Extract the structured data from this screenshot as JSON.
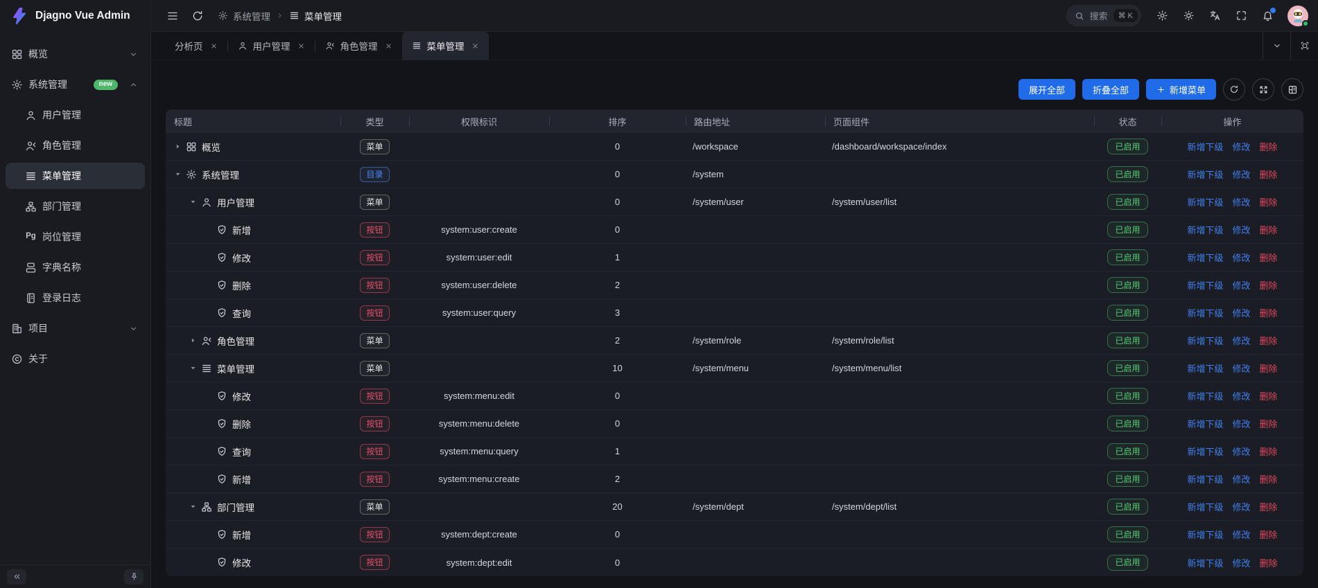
{
  "app": {
    "title": "Djagno Vue Admin"
  },
  "header": {
    "breadcrumb": [
      {
        "icon": "gear-icon",
        "label": "系统管理"
      },
      {
        "icon": "menu-list-icon",
        "label": "菜单管理"
      }
    ],
    "search": {
      "placeholder": "搜索",
      "shortcut": "⌘ K"
    }
  },
  "sidebar": {
    "items": [
      {
        "name": "overview",
        "icon": "dashboard-icon",
        "label": "概览",
        "level": 0,
        "chevron": "down"
      },
      {
        "name": "system",
        "icon": "gear-icon",
        "label": "系统管理",
        "level": 0,
        "badge": "new",
        "chevron": "up"
      },
      {
        "name": "user",
        "icon": "user-icon",
        "label": "用户管理",
        "level": 1
      },
      {
        "name": "role",
        "icon": "role-icon",
        "label": "角色管理",
        "level": 1
      },
      {
        "name": "menu",
        "icon": "menu-list-icon",
        "label": "菜单管理",
        "level": 1,
        "active": true
      },
      {
        "name": "dept",
        "icon": "dept-icon",
        "label": "部门管理",
        "level": 1
      },
      {
        "name": "post",
        "icon": "post-icon",
        "label": "岗位管理",
        "level": 1
      },
      {
        "name": "dict",
        "icon": "dict-icon",
        "label": "字典名称",
        "level": 1
      },
      {
        "name": "login-log",
        "icon": "log-icon",
        "label": "登录日志",
        "level": 1
      },
      {
        "name": "project",
        "icon": "project-icon",
        "label": "项目",
        "level": 0,
        "chevron": "down"
      },
      {
        "name": "about",
        "icon": "about-icon",
        "label": "关于",
        "level": 0
      }
    ]
  },
  "tabs": [
    {
      "name": "analysis",
      "label": "分析页"
    },
    {
      "name": "user",
      "icon": "user-icon",
      "label": "用户管理"
    },
    {
      "name": "role",
      "icon": "role-icon",
      "label": "角色管理"
    },
    {
      "name": "menu",
      "icon": "menu-list-icon",
      "label": "菜单管理",
      "active": true
    }
  ],
  "toolbar": {
    "expand_all": "展开全部",
    "collapse_all": "折叠全部",
    "add_menu": "新增菜单"
  },
  "table": {
    "columns": [
      "标题",
      "类型",
      "权限标识",
      "排序",
      "路由地址",
      "页面组件",
      "状态",
      "操作"
    ],
    "actions": [
      {
        "name": "add-child",
        "label": "新增下级",
        "variant": "blue"
      },
      {
        "name": "edit",
        "label": "修改",
        "variant": "blue"
      },
      {
        "name": "delete",
        "label": "删除",
        "variant": "red"
      }
    ],
    "rows": [
      {
        "level": 0,
        "arrow": "collapsed",
        "icon": "dashboard-icon",
        "title": "概览",
        "type": "菜单",
        "variant": "menu",
        "perm": "",
        "sort": "0",
        "route": "/workspace",
        "component": "/dashboard/workspace/index",
        "status": "已启用"
      },
      {
        "level": 0,
        "arrow": "expanded",
        "icon": "gear-icon",
        "title": "系统管理",
        "type": "目录",
        "variant": "dir",
        "perm": "",
        "sort": "0",
        "route": "/system",
        "component": "",
        "status": "已启用"
      },
      {
        "level": 1,
        "arrow": "expanded",
        "icon": "user-icon",
        "title": "用户管理",
        "type": "菜单",
        "variant": "menu",
        "perm": "",
        "sort": "0",
        "route": "/system/user",
        "component": "/system/user/list",
        "status": "已启用"
      },
      {
        "level": 2,
        "arrow": "none",
        "icon": "shield-icon",
        "title": "新增",
        "type": "按钮",
        "variant": "button",
        "perm": "system:user:create",
        "sort": "0",
        "route": "",
        "component": "",
        "status": "已启用"
      },
      {
        "level": 2,
        "arrow": "none",
        "icon": "shield-icon",
        "title": "修改",
        "type": "按钮",
        "variant": "button",
        "perm": "system:user:edit",
        "sort": "1",
        "route": "",
        "component": "",
        "status": "已启用"
      },
      {
        "level": 2,
        "arrow": "none",
        "icon": "shield-icon",
        "title": "删除",
        "type": "按钮",
        "variant": "button",
        "perm": "system:user:delete",
        "sort": "2",
        "route": "",
        "component": "",
        "status": "已启用"
      },
      {
        "level": 2,
        "arrow": "none",
        "icon": "shield-icon",
        "title": "查询",
        "type": "按钮",
        "variant": "button",
        "perm": "system:user:query",
        "sort": "3",
        "route": "",
        "component": "",
        "status": "已启用"
      },
      {
        "level": 1,
        "arrow": "collapsed",
        "icon": "role-icon",
        "title": "角色管理",
        "type": "菜单",
        "variant": "menu",
        "perm": "",
        "sort": "2",
        "route": "/system/role",
        "component": "/system/role/list",
        "status": "已启用"
      },
      {
        "level": 1,
        "arrow": "expanded",
        "icon": "menu-list-icon",
        "title": "菜单管理",
        "type": "菜单",
        "variant": "menu",
        "perm": "",
        "sort": "10",
        "route": "/system/menu",
        "component": "/system/menu/list",
        "status": "已启用"
      },
      {
        "level": 2,
        "arrow": "none",
        "icon": "shield-icon",
        "title": "修改",
        "type": "按钮",
        "variant": "button",
        "perm": "system:menu:edit",
        "sort": "0",
        "route": "",
        "component": "",
        "status": "已启用"
      },
      {
        "level": 2,
        "arrow": "none",
        "icon": "shield-icon",
        "title": "删除",
        "type": "按钮",
        "variant": "button",
        "perm": "system:menu:delete",
        "sort": "0",
        "route": "",
        "component": "",
        "status": "已启用"
      },
      {
        "level": 2,
        "arrow": "none",
        "icon": "shield-icon",
        "title": "查询",
        "type": "按钮",
        "variant": "button",
        "perm": "system:menu:query",
        "sort": "1",
        "route": "",
        "component": "",
        "status": "已启用"
      },
      {
        "level": 2,
        "arrow": "none",
        "icon": "shield-icon",
        "title": "新增",
        "type": "按钮",
        "variant": "button",
        "perm": "system:menu:create",
        "sort": "2",
        "route": "",
        "component": "",
        "status": "已启用"
      },
      {
        "level": 1,
        "arrow": "expanded",
        "icon": "dept-icon",
        "title": "部门管理",
        "type": "菜单",
        "variant": "menu",
        "perm": "",
        "sort": "20",
        "route": "/system/dept",
        "component": "/system/dept/list",
        "status": "已启用"
      },
      {
        "level": 2,
        "arrow": "none",
        "icon": "shield-icon",
        "title": "新增",
        "type": "按钮",
        "variant": "button",
        "perm": "system:dept:create",
        "sort": "0",
        "route": "",
        "component": "",
        "status": "已启用"
      },
      {
        "level": 2,
        "arrow": "none",
        "icon": "shield-icon",
        "title": "修改",
        "type": "按钮",
        "variant": "button",
        "perm": "system:dept:edit",
        "sort": "0",
        "route": "",
        "component": "",
        "status": "已启用"
      }
    ]
  },
  "colors": {
    "accent_blue": "#1f6be8",
    "link_blue": "#4080f0",
    "danger_red": "#e0475e",
    "success_green": "#57cc78",
    "dir_badge_blue": "#4f86f3",
    "new_badge_green": "#4db869"
  }
}
